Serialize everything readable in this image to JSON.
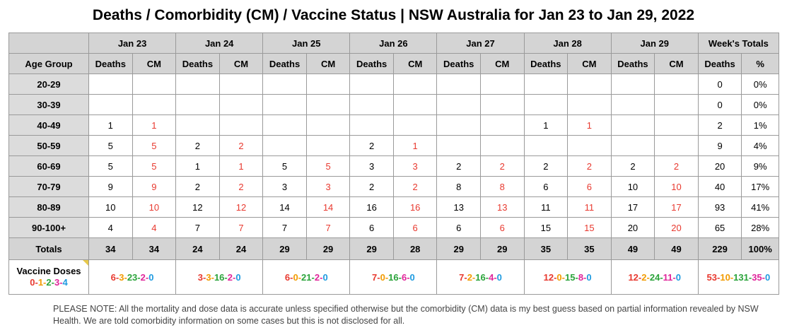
{
  "title": "Deaths / Comorbidity (CM) / Vaccine Status | NSW Australia for Jan 23 to Jan 29, 2022",
  "days": [
    "Jan 23",
    "Jan 24",
    "Jan 25",
    "Jan 26",
    "Jan 27",
    "Jan 28",
    "Jan 29"
  ],
  "week_totals_label": "Week's Totals",
  "sub_headers": {
    "age_group": "Age Group",
    "deaths": "Deaths",
    "cm": "CM",
    "pct": "%"
  },
  "rows": [
    {
      "age": "20-29",
      "cells": [
        [
          "",
          ""
        ],
        [
          "",
          ""
        ],
        [
          "",
          ""
        ],
        [
          "",
          ""
        ],
        [
          "",
          ""
        ],
        [
          "",
          ""
        ],
        [
          "",
          ""
        ]
      ],
      "total": "0",
      "pct": "0%"
    },
    {
      "age": "30-39",
      "cells": [
        [
          "",
          ""
        ],
        [
          "",
          ""
        ],
        [
          "",
          ""
        ],
        [
          "",
          ""
        ],
        [
          "",
          ""
        ],
        [
          "",
          ""
        ],
        [
          "",
          ""
        ]
      ],
      "total": "0",
      "pct": "0%"
    },
    {
      "age": "40-49",
      "cells": [
        [
          "1",
          "1"
        ],
        [
          "",
          ""
        ],
        [
          "",
          ""
        ],
        [
          "",
          ""
        ],
        [
          "",
          ""
        ],
        [
          "1",
          "1"
        ],
        [
          "",
          ""
        ]
      ],
      "total": "2",
      "pct": "1%"
    },
    {
      "age": "50-59",
      "cells": [
        [
          "5",
          "5"
        ],
        [
          "2",
          "2"
        ],
        [
          "",
          ""
        ],
        [
          "2",
          "1"
        ],
        [
          "",
          ""
        ],
        [
          "",
          ""
        ],
        [
          "",
          ""
        ]
      ],
      "total": "9",
      "pct": "4%"
    },
    {
      "age": "60-69",
      "cells": [
        [
          "5",
          "5"
        ],
        [
          "1",
          "1"
        ],
        [
          "5",
          "5"
        ],
        [
          "3",
          "3"
        ],
        [
          "2",
          "2"
        ],
        [
          "2",
          "2"
        ],
        [
          "2",
          "2"
        ]
      ],
      "total": "20",
      "pct": "9%"
    },
    {
      "age": "70-79",
      "cells": [
        [
          "9",
          "9"
        ],
        [
          "2",
          "2"
        ],
        [
          "3",
          "3"
        ],
        [
          "2",
          "2"
        ],
        [
          "8",
          "8"
        ],
        [
          "6",
          "6"
        ],
        [
          "10",
          "10"
        ]
      ],
      "total": "40",
      "pct": "17%"
    },
    {
      "age": "80-89",
      "cells": [
        [
          "10",
          "10"
        ],
        [
          "12",
          "12"
        ],
        [
          "14",
          "14"
        ],
        [
          "16",
          "16"
        ],
        [
          "13",
          "13"
        ],
        [
          "11",
          "11"
        ],
        [
          "17",
          "17"
        ]
      ],
      "total": "93",
      "pct": "41%"
    },
    {
      "age": "90-100+",
      "cells": [
        [
          "4",
          "4"
        ],
        [
          "7",
          "7"
        ],
        [
          "7",
          "7"
        ],
        [
          "6",
          "6"
        ],
        [
          "6",
          "6"
        ],
        [
          "15",
          "15"
        ],
        [
          "20",
          "20"
        ]
      ],
      "total": "65",
      "pct": "28%"
    }
  ],
  "totals": {
    "label": "Totals",
    "cells": [
      [
        "34",
        "34"
      ],
      [
        "24",
        "24"
      ],
      [
        "29",
        "29"
      ],
      [
        "29",
        "28"
      ],
      [
        "29",
        "29"
      ],
      [
        "35",
        "35"
      ],
      [
        "49",
        "49"
      ]
    ],
    "total": "229",
    "pct": "100%"
  },
  "vaccine": {
    "label": "Vaccine Doses",
    "legend": [
      "0",
      "1",
      "2",
      "3",
      "4"
    ],
    "days": [
      [
        "6",
        "3",
        "23",
        "2",
        "0"
      ],
      [
        "3",
        "3",
        "16",
        "2",
        "0"
      ],
      [
        "6",
        "0",
        "21",
        "2",
        "0"
      ],
      [
        "7",
        "0",
        "16",
        "6",
        "0"
      ],
      [
        "7",
        "2",
        "16",
        "4",
        "0"
      ],
      [
        "12",
        "0",
        "15",
        "8",
        "0"
      ],
      [
        "12",
        "2",
        "24",
        "11",
        "0"
      ]
    ],
    "week": [
      "53",
      "10",
      "131",
      "35",
      "0"
    ]
  },
  "dose_colors": [
    "#e8392f",
    "#f29b00",
    "#2aa33a",
    "#e0249a",
    "#1e9ae0"
  ],
  "note": "PLEASE NOTE: All the mortality and dose data is accurate unless specified otherwise but the comorbidity (CM) data is my best guess based on partial information revealed by NSW Health. We are told comorbidity information on some cases but this is not disclosed for all."
}
